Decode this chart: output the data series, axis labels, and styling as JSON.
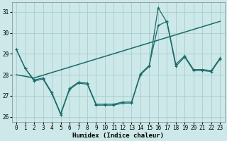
{
  "xlabel": "Humidex (Indice chaleur)",
  "bg_color": "#cce8e8",
  "grid_color": "#aacccc",
  "line_color": "#1a6b6b",
  "xlim": [
    -0.5,
    23.5
  ],
  "ylim": [
    25.75,
    31.45
  ],
  "yticks": [
    26,
    27,
    28,
    29,
    30,
    31
  ],
  "xticks": [
    0,
    1,
    2,
    3,
    4,
    5,
    6,
    7,
    8,
    9,
    10,
    11,
    12,
    13,
    14,
    15,
    16,
    17,
    18,
    19,
    20,
    21,
    22,
    23
  ],
  "line_zigzag_x": [
    0,
    1,
    2,
    3,
    4,
    5,
    6,
    7,
    8,
    9,
    10,
    11,
    12,
    13,
    14,
    15,
    16,
    17,
    18,
    19,
    20,
    21,
    22,
    23
  ],
  "line_zigzag_y": [
    29.2,
    28.3,
    27.7,
    27.8,
    27.1,
    26.1,
    27.3,
    27.6,
    27.55,
    26.55,
    26.55,
    26.55,
    26.65,
    26.65,
    28.0,
    28.4,
    31.2,
    30.5,
    28.4,
    28.85,
    28.2,
    28.2,
    28.15,
    28.75
  ],
  "line_smooth_x": [
    0,
    1,
    2,
    3,
    4,
    5,
    6,
    7,
    8,
    9,
    10,
    11,
    12,
    13,
    14,
    15,
    16,
    17,
    18,
    19,
    20,
    21,
    22,
    23
  ],
  "line_smooth_y": [
    29.2,
    28.3,
    27.75,
    27.85,
    27.15,
    26.15,
    27.35,
    27.65,
    27.6,
    26.6,
    26.6,
    26.6,
    26.7,
    26.7,
    28.05,
    28.45,
    30.35,
    30.55,
    28.5,
    28.9,
    28.25,
    28.25,
    28.2,
    28.8
  ],
  "line_trend_x": [
    0,
    2,
    23
  ],
  "line_trend_y": [
    28.0,
    27.85,
    30.55
  ]
}
